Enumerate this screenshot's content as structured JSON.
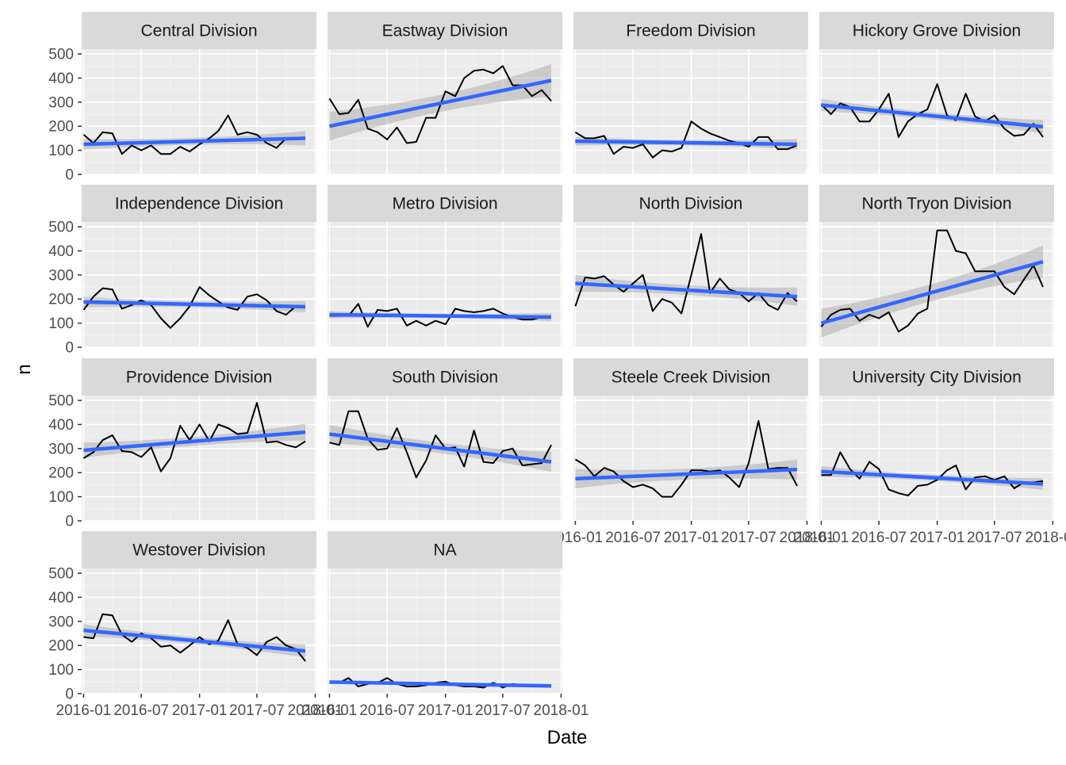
{
  "chart_data": {
    "type": "line",
    "layout": "facet_wrap",
    "xlabel": "Date",
    "ylabel": "n",
    "y_ticks": [
      0,
      100,
      200,
      300,
      400,
      500
    ],
    "ylim": [
      0,
      520
    ],
    "x_ticks": [
      "2016-01",
      "2016-07",
      "2017-01",
      "2017-07",
      "2018-01"
    ],
    "xlim": [
      "2015-12-26",
      "2018-01-05"
    ],
    "x_dates": [
      "2016-01",
      "2016-02",
      "2016-03",
      "2016-04",
      "2016-05",
      "2016-06",
      "2016-07",
      "2016-08",
      "2016-09",
      "2016-10",
      "2016-11",
      "2016-12",
      "2017-01",
      "2017-02",
      "2017-03",
      "2017-04",
      "2017-05",
      "2017-06",
      "2017-07",
      "2017-08",
      "2017-09",
      "2017-10",
      "2017-11",
      "2017-12"
    ],
    "overlay": "linear fit (blue) with confidence band (grey)",
    "colors": {
      "line": "#000000",
      "fit": "#3366FF",
      "band": "#999999",
      "panel": "#EBEBEB",
      "strip": "#D9D9D9"
    },
    "panels": [
      {
        "name": "Central Division",
        "values": [
          165,
          130,
          175,
          170,
          85,
          120,
          100,
          120,
          85,
          85,
          115,
          95,
          125,
          150,
          180,
          245,
          165,
          175,
          165,
          130,
          110,
          150,
          150,
          150
        ],
        "fit": [
          125,
          150
        ],
        "band_halfwidth": [
          22,
          30
        ]
      },
      {
        "name": "Eastway Division",
        "values": [
          315,
          250,
          255,
          310,
          190,
          175,
          145,
          195,
          130,
          135,
          235,
          235,
          345,
          325,
          400,
          430,
          435,
          420,
          450,
          370,
          370,
          325,
          350,
          305
        ],
        "fit": [
          200,
          390
        ],
        "band_halfwidth": [
          60,
          68
        ]
      },
      {
        "name": "Freedom Division",
        "values": [
          175,
          150,
          150,
          160,
          85,
          115,
          110,
          125,
          70,
          100,
          95,
          110,
          220,
          190,
          170,
          155,
          140,
          130,
          115,
          155,
          155,
          105,
          105,
          120
        ],
        "fit": [
          138,
          125
        ],
        "band_halfwidth": [
          18,
          22
        ]
      },
      {
        "name": "Hickory Grove Division",
        "values": [
          290,
          250,
          295,
          280,
          220,
          220,
          270,
          335,
          155,
          220,
          250,
          270,
          375,
          245,
          225,
          335,
          240,
          220,
          245,
          190,
          160,
          165,
          210,
          155
        ],
        "fit": [
          288,
          198
        ],
        "band_halfwidth": [
          25,
          28
        ]
      },
      {
        "name": "Independence Division",
        "values": [
          155,
          210,
          245,
          240,
          160,
          175,
          195,
          175,
          120,
          80,
          120,
          170,
          250,
          215,
          190,
          165,
          155,
          210,
          220,
          195,
          150,
          135,
          170,
          170
        ],
        "fit": [
          188,
          168
        ],
        "band_halfwidth": [
          22,
          24
        ]
      },
      {
        "name": "Metro Division",
        "values": [
          130,
          130,
          130,
          180,
          85,
          155,
          150,
          160,
          90,
          110,
          90,
          110,
          95,
          160,
          150,
          145,
          150,
          160,
          140,
          125,
          115,
          115,
          125,
          125
        ],
        "fit": [
          135,
          125
        ],
        "band_halfwidth": [
          15,
          17
        ]
      },
      {
        "name": "North Division",
        "values": [
          170,
          290,
          285,
          295,
          260,
          230,
          265,
          300,
          150,
          200,
          185,
          140,
          300,
          470,
          225,
          285,
          240,
          225,
          190,
          225,
          175,
          155,
          225,
          190
        ],
        "fit": [
          265,
          210
        ],
        "band_halfwidth": [
          35,
          38
        ]
      },
      {
        "name": "North Tryon Division",
        "values": [
          85,
          135,
          155,
          160,
          110,
          135,
          120,
          145,
          65,
          90,
          140,
          160,
          485,
          485,
          400,
          390,
          315,
          315,
          315,
          250,
          220,
          280,
          340,
          250
        ],
        "fit": [
          100,
          355
        ],
        "band_halfwidth": [
          60,
          68
        ]
      },
      {
        "name": "Providence Division",
        "values": [
          260,
          285,
          335,
          355,
          290,
          285,
          265,
          305,
          205,
          260,
          395,
          335,
          400,
          330,
          400,
          385,
          360,
          365,
          490,
          325,
          330,
          315,
          305,
          330
        ],
        "fit": [
          293,
          368
        ],
        "band_halfwidth": [
          32,
          35
        ]
      },
      {
        "name": "South Division",
        "values": [
          325,
          315,
          455,
          455,
          340,
          295,
          300,
          385,
          285,
          180,
          250,
          355,
          300,
          305,
          225,
          375,
          245,
          240,
          290,
          300,
          230,
          235,
          240,
          315
        ],
        "fit": [
          360,
          245
        ],
        "band_halfwidth": [
          38,
          42
        ]
      },
      {
        "name": "Steele Creek Division",
        "values": [
          255,
          230,
          185,
          220,
          205,
          165,
          140,
          150,
          135,
          100,
          100,
          150,
          210,
          210,
          205,
          210,
          180,
          140,
          240,
          415,
          215,
          220,
          220,
          145
        ],
        "fit": [
          175,
          213
        ],
        "band_halfwidth": [
          40,
          42
        ]
      },
      {
        "name": "University City Division",
        "values": [
          190,
          190,
          285,
          215,
          175,
          245,
          215,
          130,
          115,
          105,
          145,
          150,
          170,
          210,
          230,
          130,
          180,
          185,
          170,
          185,
          135,
          160,
          160,
          165
        ],
        "fit": [
          205,
          153
        ],
        "band_halfwidth": [
          22,
          24
        ]
      },
      {
        "name": "Westover Division",
        "values": [
          235,
          230,
          330,
          325,
          245,
          215,
          250,
          230,
          195,
          200,
          170,
          200,
          235,
          205,
          220,
          305,
          205,
          190,
          160,
          215,
          235,
          200,
          185,
          135
        ],
        "fit": [
          263,
          177
        ],
        "band_halfwidth": [
          25,
          27
        ]
      },
      {
        "name": "NA",
        "values": [
          45,
          45,
          65,
          30,
          40,
          45,
          65,
          40,
          30,
          30,
          35,
          45,
          50,
          35,
          30,
          30,
          25,
          45,
          25,
          40,
          35,
          35,
          35,
          30
        ],
        "fit": [
          48,
          32
        ],
        "band_halfwidth": [
          6,
          7
        ]
      }
    ]
  }
}
